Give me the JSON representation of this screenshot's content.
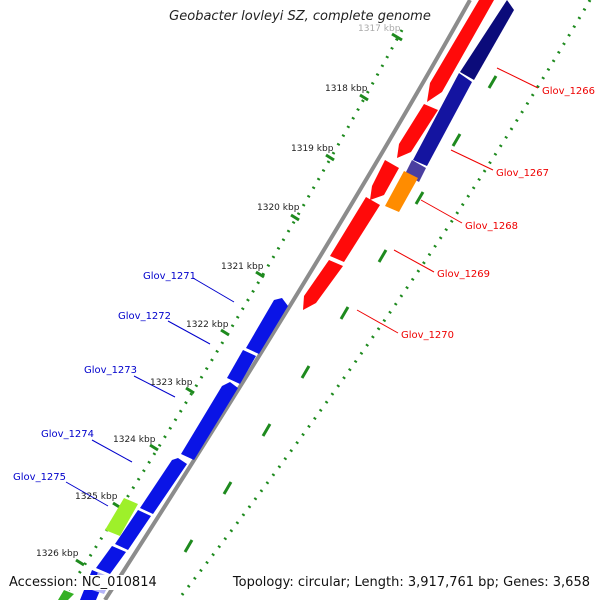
{
  "title": "Geobacter lovleyi SZ, complete genome",
  "accession": "Accession: NC_010814",
  "topology": "Topology: circular; Length: 3,917,761 bp; Genes: 3,658",
  "colors": {
    "backbone": "#8c8c8c",
    "ticks": "#1e8a1e",
    "forward_gene": "#0a14e6",
    "reverse_gene": "#ff0a0a",
    "forward_label": "#0000cc",
    "reverse_label": "#ee0000",
    "tick_label": "#222222"
  },
  "kbp_ticks": [
    {
      "label": "1317 kbp"
    },
    {
      "label": "1318 kbp"
    },
    {
      "label": "1319 kbp"
    },
    {
      "label": "1320 kbp"
    },
    {
      "label": "1321 kbp"
    },
    {
      "label": "1322 kbp"
    },
    {
      "label": "1323 kbp"
    },
    {
      "label": "1324 kbp"
    },
    {
      "label": "1325 kbp"
    },
    {
      "label": "1326 kbp"
    }
  ],
  "reverse_genes": [
    {
      "label": "Glov_1266"
    },
    {
      "label": "Glov_1267"
    },
    {
      "label": "Glov_1268"
    },
    {
      "label": "Glov_1269"
    },
    {
      "label": "Glov_1270"
    }
  ],
  "forward_genes": [
    {
      "label": "Glov_1271"
    },
    {
      "label": "Glov_1272"
    },
    {
      "label": "Glov_1273"
    },
    {
      "label": "Glov_1274"
    },
    {
      "label": "Glov_1275"
    }
  ]
}
